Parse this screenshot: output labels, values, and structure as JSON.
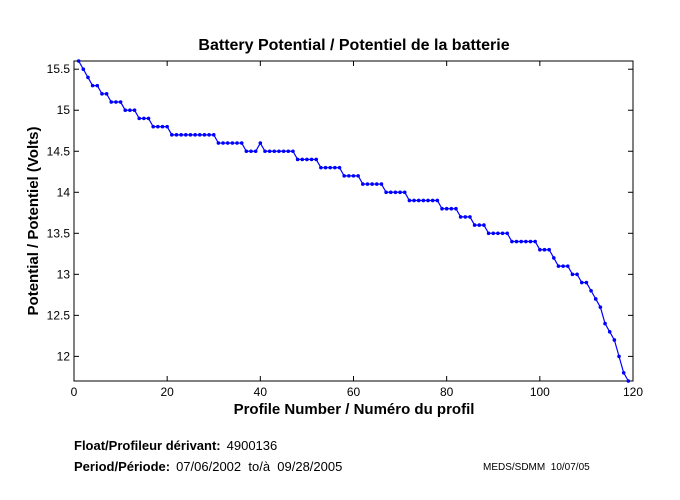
{
  "chart_data": {
    "type": "line",
    "title": "Battery Potential / Potentiel de la batterie",
    "xlabel": "Profile Number / Numéro du profil",
    "ylabel": "Potential / Potentiel (Volts)",
    "xlim": [
      0,
      120
    ],
    "ylim": [
      11.7,
      15.6
    ],
    "xticks": [
      0,
      20,
      40,
      60,
      80,
      100,
      120
    ],
    "yticks": [
      12,
      12.5,
      13,
      13.5,
      14,
      14.5,
      15,
      15.5
    ],
    "xtick_labels": [
      "0",
      "20",
      "40",
      "60",
      "80",
      "100",
      "120"
    ],
    "ytick_labels": [
      "12",
      "12.5",
      "13",
      "13.5",
      "14",
      "14.5",
      "15",
      "15.5"
    ],
    "grid": false,
    "line_color": "#0000ff",
    "marker": "dot",
    "x": [
      1,
      2,
      3,
      4,
      5,
      6,
      7,
      8,
      9,
      10,
      11,
      12,
      13,
      14,
      15,
      16,
      17,
      18,
      19,
      20,
      21,
      22,
      23,
      24,
      25,
      26,
      27,
      28,
      29,
      30,
      31,
      32,
      33,
      34,
      35,
      36,
      37,
      38,
      39,
      40,
      41,
      42,
      43,
      44,
      45,
      46,
      47,
      48,
      49,
      50,
      51,
      52,
      53,
      54,
      55,
      56,
      57,
      58,
      59,
      60,
      61,
      62,
      63,
      64,
      65,
      66,
      67,
      68,
      69,
      70,
      71,
      72,
      73,
      74,
      75,
      76,
      77,
      78,
      79,
      80,
      81,
      82,
      83,
      84,
      85,
      86,
      87,
      88,
      89,
      90,
      91,
      92,
      93,
      94,
      95,
      96,
      97,
      98,
      99,
      100,
      101,
      102,
      103,
      104,
      105,
      106,
      107,
      108,
      109,
      110,
      111,
      112,
      113,
      114,
      115,
      116,
      117,
      118,
      119
    ],
    "y": [
      15.6,
      15.5,
      15.4,
      15.3,
      15.3,
      15.2,
      15.2,
      15.1,
      15.1,
      15.1,
      15.0,
      15.0,
      15.0,
      14.9,
      14.9,
      14.9,
      14.8,
      14.8,
      14.8,
      14.8,
      14.7,
      14.7,
      14.7,
      14.7,
      14.7,
      14.7,
      14.7,
      14.7,
      14.7,
      14.7,
      14.6,
      14.6,
      14.6,
      14.6,
      14.6,
      14.6,
      14.5,
      14.5,
      14.5,
      14.6,
      14.5,
      14.5,
      14.5,
      14.5,
      14.5,
      14.5,
      14.5,
      14.4,
      14.4,
      14.4,
      14.4,
      14.4,
      14.3,
      14.3,
      14.3,
      14.3,
      14.3,
      14.2,
      14.2,
      14.2,
      14.2,
      14.1,
      14.1,
      14.1,
      14.1,
      14.1,
      14.0,
      14.0,
      14.0,
      14.0,
      14.0,
      13.9,
      13.9,
      13.9,
      13.9,
      13.9,
      13.9,
      13.9,
      13.8,
      13.8,
      13.8,
      13.8,
      13.7,
      13.7,
      13.7,
      13.6,
      13.6,
      13.6,
      13.5,
      13.5,
      13.5,
      13.5,
      13.5,
      13.4,
      13.4,
      13.4,
      13.4,
      13.4,
      13.4,
      13.3,
      13.3,
      13.3,
      13.2,
      13.1,
      13.1,
      13.1,
      13.0,
      13.0,
      12.9,
      12.9,
      12.8,
      12.7,
      12.6,
      12.4,
      12.3,
      12.2,
      12.0,
      11.8,
      11.7
    ]
  },
  "footer": {
    "float_label": "Float/Profileur dérivant:",
    "float_value": "4900136",
    "period_label": "Period/Période:",
    "period_value": "07/06/2002  to/à  09/28/2005",
    "credit": "MEDS/SDMM  10/07/05"
  }
}
